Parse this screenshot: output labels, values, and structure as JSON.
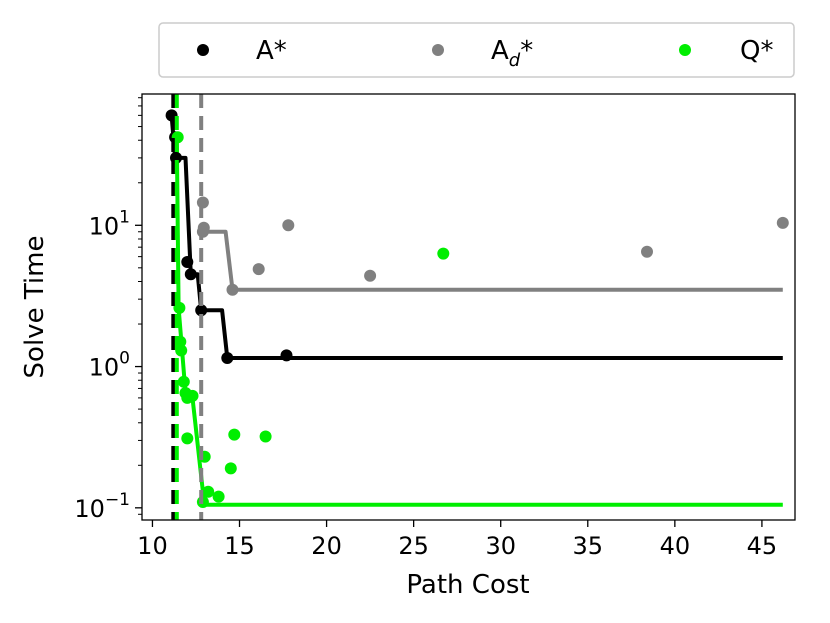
{
  "chart_data": {
    "type": "scatter",
    "xlabel": "Path Cost",
    "ylabel": "Solve Time",
    "xlim": [
      9.4,
      46.9
    ],
    "ylim": [
      0.082,
      85
    ],
    "yscale": "log",
    "xticks": [
      10,
      15,
      20,
      25,
      30,
      35,
      40,
      45
    ],
    "xtick_labels": [
      "10",
      "15",
      "20",
      "25",
      "30",
      "35",
      "40",
      "45"
    ],
    "yticks": [
      0.1,
      1,
      10
    ],
    "ytick_labels": [
      {
        "base": "10",
        "exp": "−1"
      },
      {
        "base": "10",
        "exp": "0"
      },
      {
        "base": "10",
        "exp": "1"
      }
    ],
    "grid": false,
    "legend_position": "top, outside plot",
    "series": [
      {
        "name": "A*",
        "color": "#000000",
        "vline_x": 11.2,
        "points": [
          [
            11.1,
            60
          ],
          [
            11.3,
            42
          ],
          [
            11.35,
            30
          ],
          [
            12.0,
            5.5
          ],
          [
            12.2,
            4.5
          ],
          [
            12.8,
            2.5
          ],
          [
            14.3,
            1.15
          ],
          [
            17.7,
            1.2
          ]
        ],
        "frontier": [
          [
            11.1,
            60
          ],
          [
            11.3,
            30
          ],
          [
            11.9,
            30
          ],
          [
            12.2,
            4.5
          ],
          [
            12.6,
            4.5
          ],
          [
            12.8,
            2.5
          ],
          [
            14.0,
            2.5
          ],
          [
            14.3,
            1.15
          ],
          [
            46.2,
            1.15
          ]
        ]
      },
      {
        "name": "A_d*",
        "color": "#808080",
        "vline_x": 12.8,
        "points": [
          [
            12.9,
            14.5
          ],
          [
            12.9,
            9.0
          ],
          [
            12.95,
            9.6
          ],
          [
            14.6,
            3.5
          ],
          [
            16.1,
            4.9
          ],
          [
            17.8,
            10.0
          ],
          [
            22.5,
            4.4
          ],
          [
            38.4,
            6.5
          ],
          [
            46.2,
            10.4
          ]
        ],
        "frontier": [
          [
            12.9,
            9.0
          ],
          [
            14.2,
            9.0
          ],
          [
            14.6,
            3.5
          ],
          [
            46.2,
            3.5
          ]
        ]
      },
      {
        "name": "Q*",
        "color": "#00ee00",
        "vline_x": 11.4,
        "points": [
          [
            11.45,
            42
          ],
          [
            11.55,
            2.6
          ],
          [
            11.6,
            1.5
          ],
          [
            11.65,
            1.3
          ],
          [
            11.8,
            0.78
          ],
          [
            11.9,
            0.65
          ],
          [
            12.0,
            0.6
          ],
          [
            12.3,
            0.62
          ],
          [
            12.0,
            0.31
          ],
          [
            13.0,
            0.23
          ],
          [
            14.7,
            0.33
          ],
          [
            16.5,
            0.32
          ],
          [
            13.8,
            0.12
          ],
          [
            12.9,
            0.11
          ],
          [
            13.2,
            0.13
          ],
          [
            14.5,
            0.19
          ],
          [
            26.7,
            6.3
          ]
        ],
        "frontier": [
          [
            11.4,
            42
          ],
          [
            11.5,
            2.6
          ],
          [
            11.7,
            1.3
          ],
          [
            11.9,
            0.65
          ],
          [
            12.3,
            0.6
          ],
          [
            12.9,
            0.13
          ],
          [
            13.1,
            0.105
          ],
          [
            46.2,
            0.105
          ]
        ]
      }
    ]
  }
}
